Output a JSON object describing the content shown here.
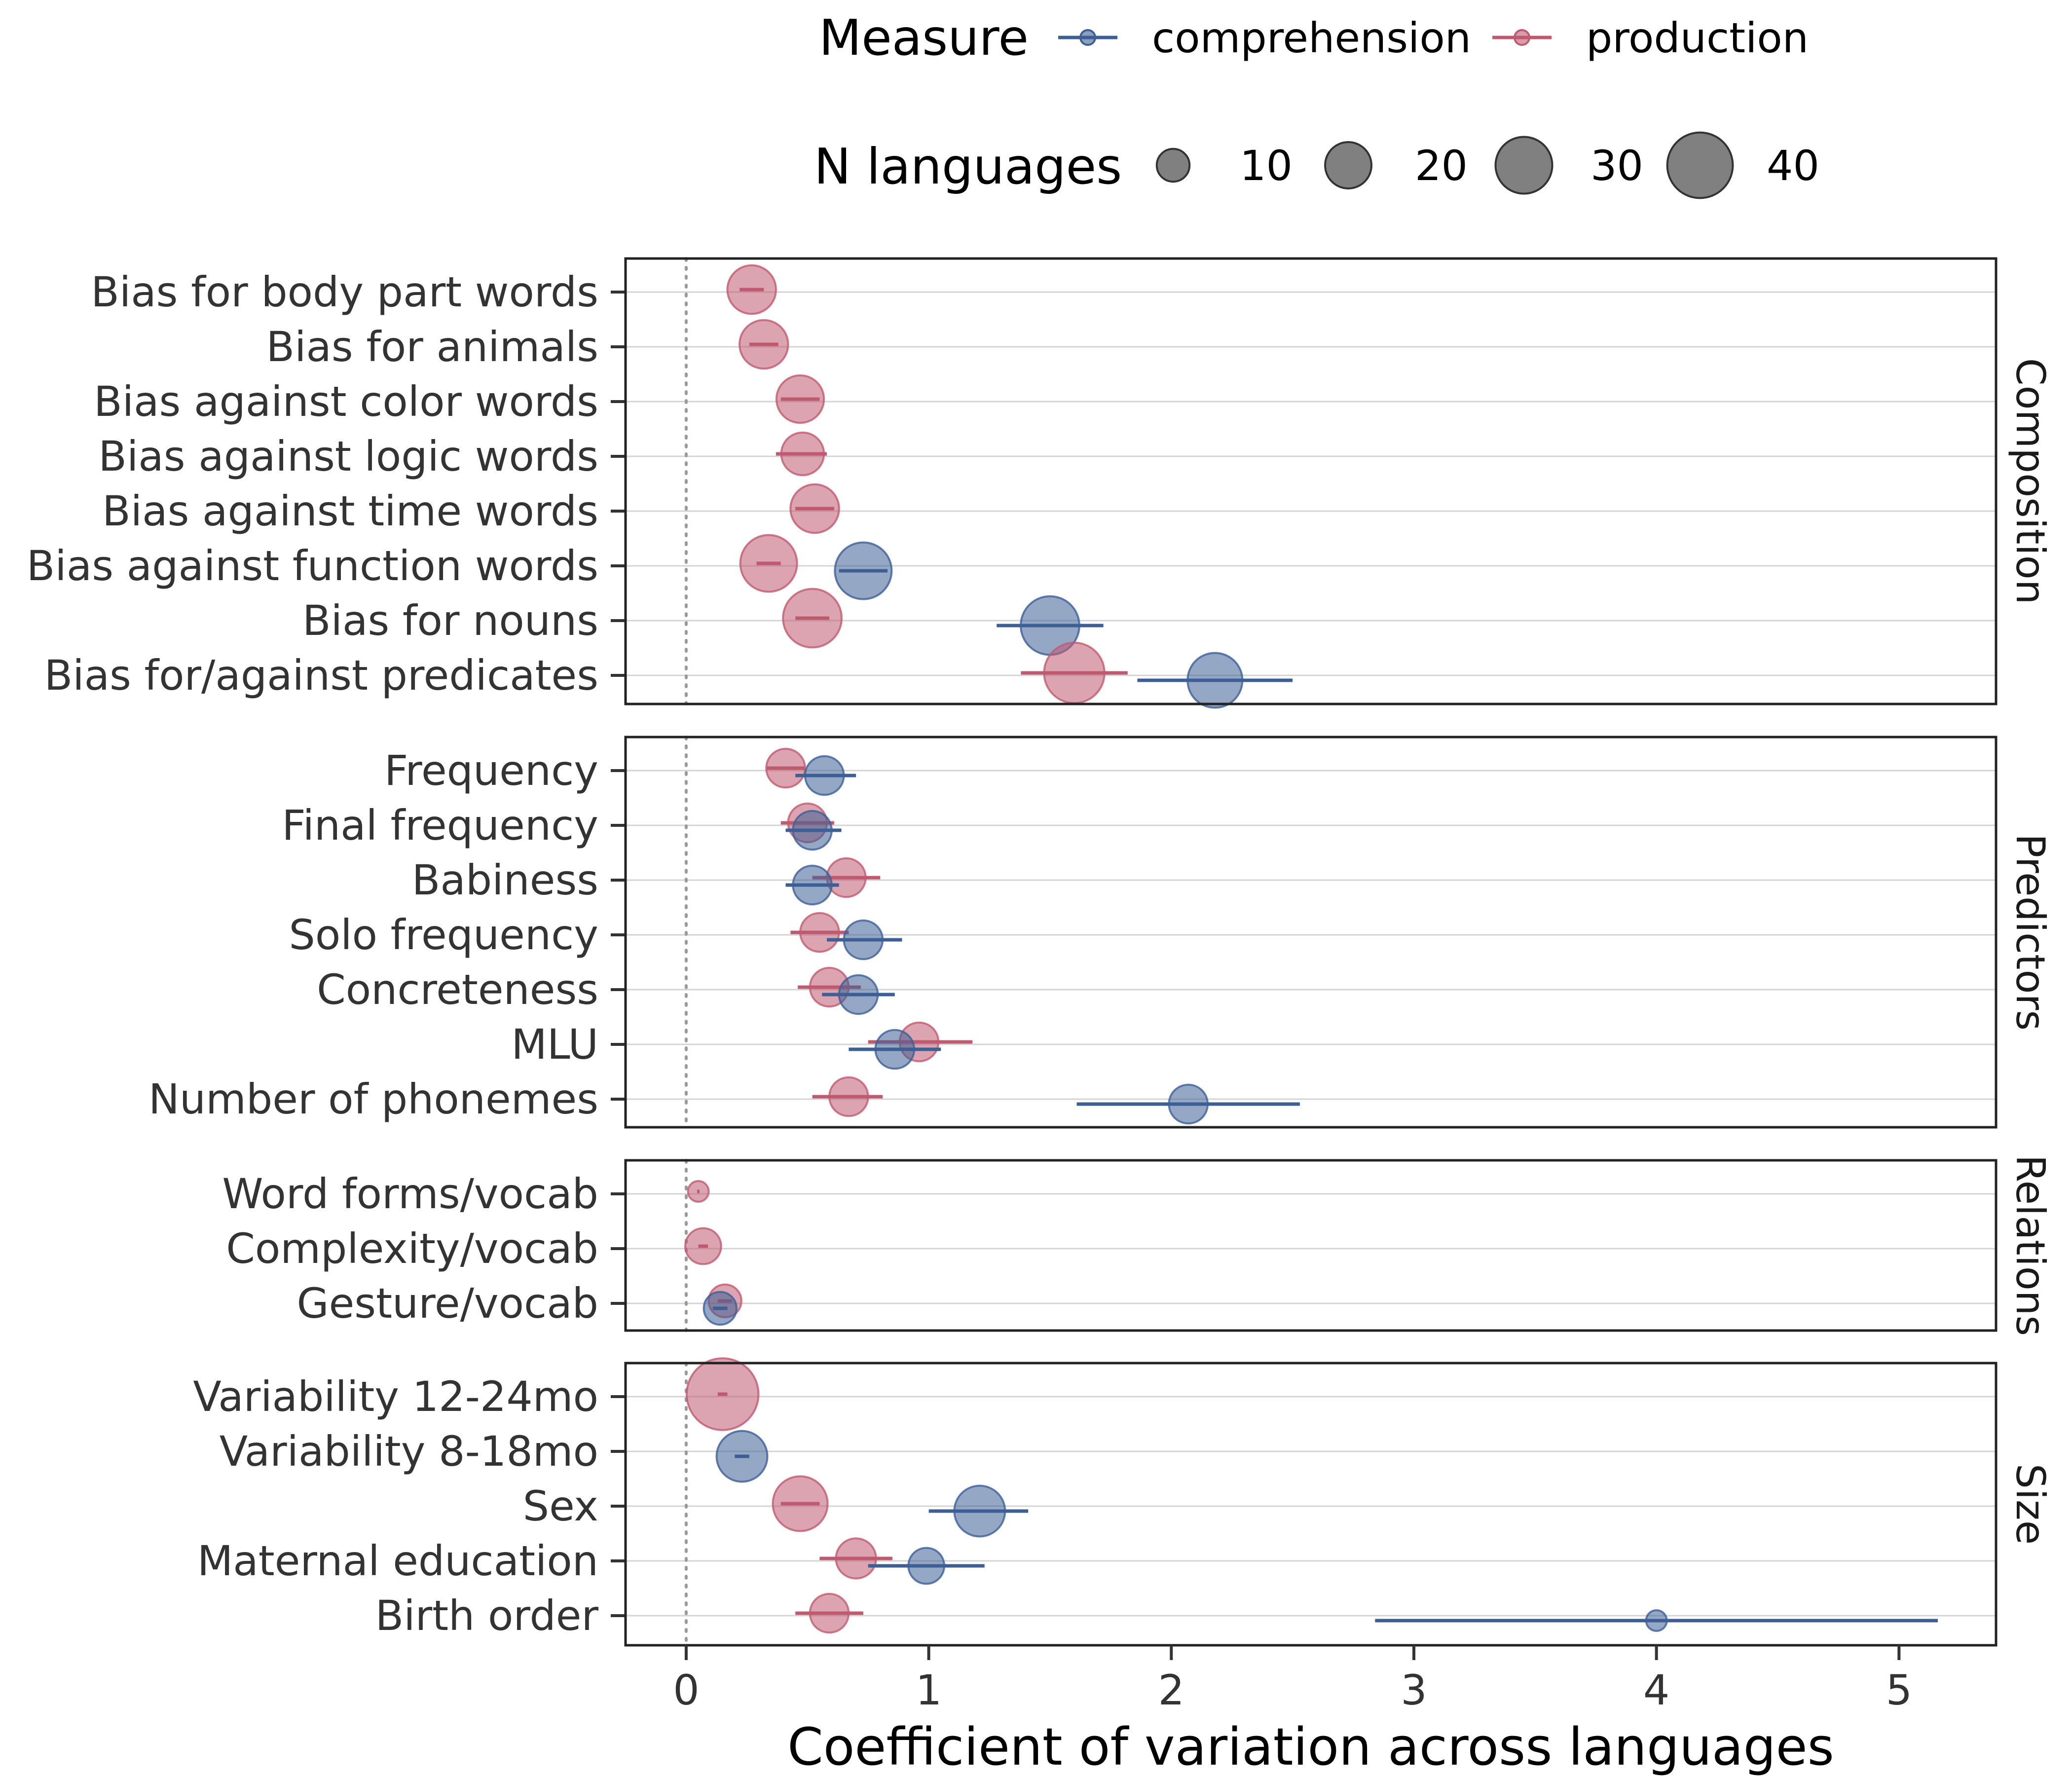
{
  "chart_data": {
    "type": "scatter",
    "xlabel": "Coefficient of variation across languages",
    "ylabel": "",
    "xlim": [
      -0.25,
      5.4
    ],
    "x_ticks": [
      0,
      1,
      2,
      3,
      4,
      5
    ],
    "reference_line": 0,
    "grid": "horizontal",
    "legend_placement": "top",
    "legend": {
      "measure_title": "Measure",
      "measures": [
        {
          "key": "comprehension",
          "label": "comprehension",
          "color": "#3d5f96"
        },
        {
          "key": "production",
          "label": "production",
          "color": "#c05a70"
        }
      ],
      "size_title": "N languages",
      "sizes": [
        10,
        20,
        30,
        40
      ]
    },
    "facets": [
      {
        "name": "Composition",
        "rows": [
          {
            "label": "Bias for body part words",
            "points": [
              {
                "measure": "production",
                "value": 0.27,
                "lo": 0.22,
                "hi": 0.32,
                "n": 22
              }
            ]
          },
          {
            "label": "Bias for animals",
            "points": [
              {
                "measure": "production",
                "value": 0.32,
                "lo": 0.26,
                "hi": 0.38,
                "n": 22
              }
            ]
          },
          {
            "label": "Bias against color words",
            "points": [
              {
                "measure": "production",
                "value": 0.47,
                "lo": 0.39,
                "hi": 0.55,
                "n": 21
              }
            ]
          },
          {
            "label": "Bias against logic words",
            "points": [
              {
                "measure": "production",
                "value": 0.48,
                "lo": 0.37,
                "hi": 0.58,
                "n": 17
              }
            ]
          },
          {
            "label": "Bias against time words",
            "points": [
              {
                "measure": "production",
                "value": 0.53,
                "lo": 0.45,
                "hi": 0.61,
                "n": 22
              }
            ]
          },
          {
            "label": "Bias against function words",
            "points": [
              {
                "measure": "production",
                "value": 0.34,
                "lo": 0.29,
                "hi": 0.39,
                "n": 30
              },
              {
                "measure": "comprehension",
                "value": 0.73,
                "lo": 0.63,
                "hi": 0.83,
                "n": 30
              }
            ]
          },
          {
            "label": "Bias for nouns",
            "points": [
              {
                "measure": "production",
                "value": 0.52,
                "lo": 0.45,
                "hi": 0.59,
                "n": 32
              },
              {
                "measure": "comprehension",
                "value": 1.5,
                "lo": 1.28,
                "hi": 1.72,
                "n": 32
              }
            ]
          },
          {
            "label": "Bias for/against predicates",
            "points": [
              {
                "measure": "production",
                "value": 1.6,
                "lo": 1.38,
                "hi": 1.82,
                "n": 34
              },
              {
                "measure": "comprehension",
                "value": 2.18,
                "lo": 1.86,
                "hi": 2.5,
                "n": 28
              }
            ]
          }
        ]
      },
      {
        "name": "Predictors",
        "rows": [
          {
            "label": "Frequency",
            "points": [
              {
                "measure": "production",
                "value": 0.41,
                "lo": 0.33,
                "hi": 0.49,
                "n": 14
              },
              {
                "measure": "comprehension",
                "value": 0.57,
                "lo": 0.45,
                "hi": 0.7,
                "n": 14
              }
            ]
          },
          {
            "label": "Final frequency",
            "points": [
              {
                "measure": "production",
                "value": 0.5,
                "lo": 0.39,
                "hi": 0.61,
                "n": 14
              },
              {
                "measure": "comprehension",
                "value": 0.52,
                "lo": 0.41,
                "hi": 0.64,
                "n": 14
              }
            ]
          },
          {
            "label": "Babiness",
            "points": [
              {
                "measure": "production",
                "value": 0.66,
                "lo": 0.52,
                "hi": 0.8,
                "n": 14
              },
              {
                "measure": "comprehension",
                "value": 0.52,
                "lo": 0.41,
                "hi": 0.63,
                "n": 14
              }
            ]
          },
          {
            "label": "Solo frequency",
            "points": [
              {
                "measure": "production",
                "value": 0.55,
                "lo": 0.43,
                "hi": 0.67,
                "n": 14
              },
              {
                "measure": "comprehension",
                "value": 0.73,
                "lo": 0.58,
                "hi": 0.89,
                "n": 14
              }
            ]
          },
          {
            "label": "Concreteness",
            "points": [
              {
                "measure": "production",
                "value": 0.59,
                "lo": 0.46,
                "hi": 0.72,
                "n": 14
              },
              {
                "measure": "comprehension",
                "value": 0.71,
                "lo": 0.56,
                "hi": 0.86,
                "n": 14
              }
            ]
          },
          {
            "label": "MLU",
            "points": [
              {
                "measure": "production",
                "value": 0.96,
                "lo": 0.75,
                "hi": 1.18,
                "n": 14
              },
              {
                "measure": "comprehension",
                "value": 0.86,
                "lo": 0.67,
                "hi": 1.05,
                "n": 14
              }
            ]
          },
          {
            "label": "Number of phonemes",
            "points": [
              {
                "measure": "production",
                "value": 0.67,
                "lo": 0.52,
                "hi": 0.81,
                "n": 14
              },
              {
                "measure": "comprehension",
                "value": 2.07,
                "lo": 1.61,
                "hi": 2.53,
                "n": 14
              }
            ]
          }
        ]
      },
      {
        "name": "Relations",
        "rows": [
          {
            "label": "Word forms/vocab",
            "points": [
              {
                "measure": "production",
                "value": 0.05,
                "lo": 0.045,
                "hi": 0.055,
                "n": 4
              }
            ]
          },
          {
            "label": "Complexity/vocab",
            "points": [
              {
                "measure": "production",
                "value": 0.07,
                "lo": 0.05,
                "hi": 0.09,
                "n": 12
              }
            ]
          },
          {
            "label": "Gesture/vocab",
            "points": [
              {
                "measure": "production",
                "value": 0.16,
                "lo": 0.13,
                "hi": 0.19,
                "n": 10
              },
              {
                "measure": "comprehension",
                "value": 0.14,
                "lo": 0.11,
                "hi": 0.17,
                "n": 10
              }
            ]
          }
        ]
      },
      {
        "name": "Size",
        "rows": [
          {
            "label": "Variability 12-24mo",
            "points": [
              {
                "measure": "production",
                "value": 0.15,
                "lo": 0.13,
                "hi": 0.17,
                "n": 48
              }
            ]
          },
          {
            "label": "Variability 8-18mo",
            "points": [
              {
                "measure": "comprehension",
                "value": 0.23,
                "lo": 0.2,
                "hi": 0.26,
                "n": 24
              }
            ]
          },
          {
            "label": "Sex",
            "points": [
              {
                "measure": "production",
                "value": 0.47,
                "lo": 0.39,
                "hi": 0.55,
                "n": 28
              },
              {
                "measure": "comprehension",
                "value": 1.21,
                "lo": 1.0,
                "hi": 1.41,
                "n": 24
              }
            ]
          },
          {
            "label": "Maternal education",
            "points": [
              {
                "measure": "production",
                "value": 0.7,
                "lo": 0.55,
                "hi": 0.85,
                "n": 15
              },
              {
                "measure": "comprehension",
                "value": 0.99,
                "lo": 0.75,
                "hi": 1.23,
                "n": 12
              }
            ]
          },
          {
            "label": "Birth order",
            "points": [
              {
                "measure": "production",
                "value": 0.59,
                "lo": 0.45,
                "hi": 0.73,
                "n": 14
              },
              {
                "measure": "comprehension",
                "value": 4.0,
                "lo": 2.84,
                "hi": 5.16,
                "n": 4
              }
            ]
          }
        ]
      }
    ]
  }
}
